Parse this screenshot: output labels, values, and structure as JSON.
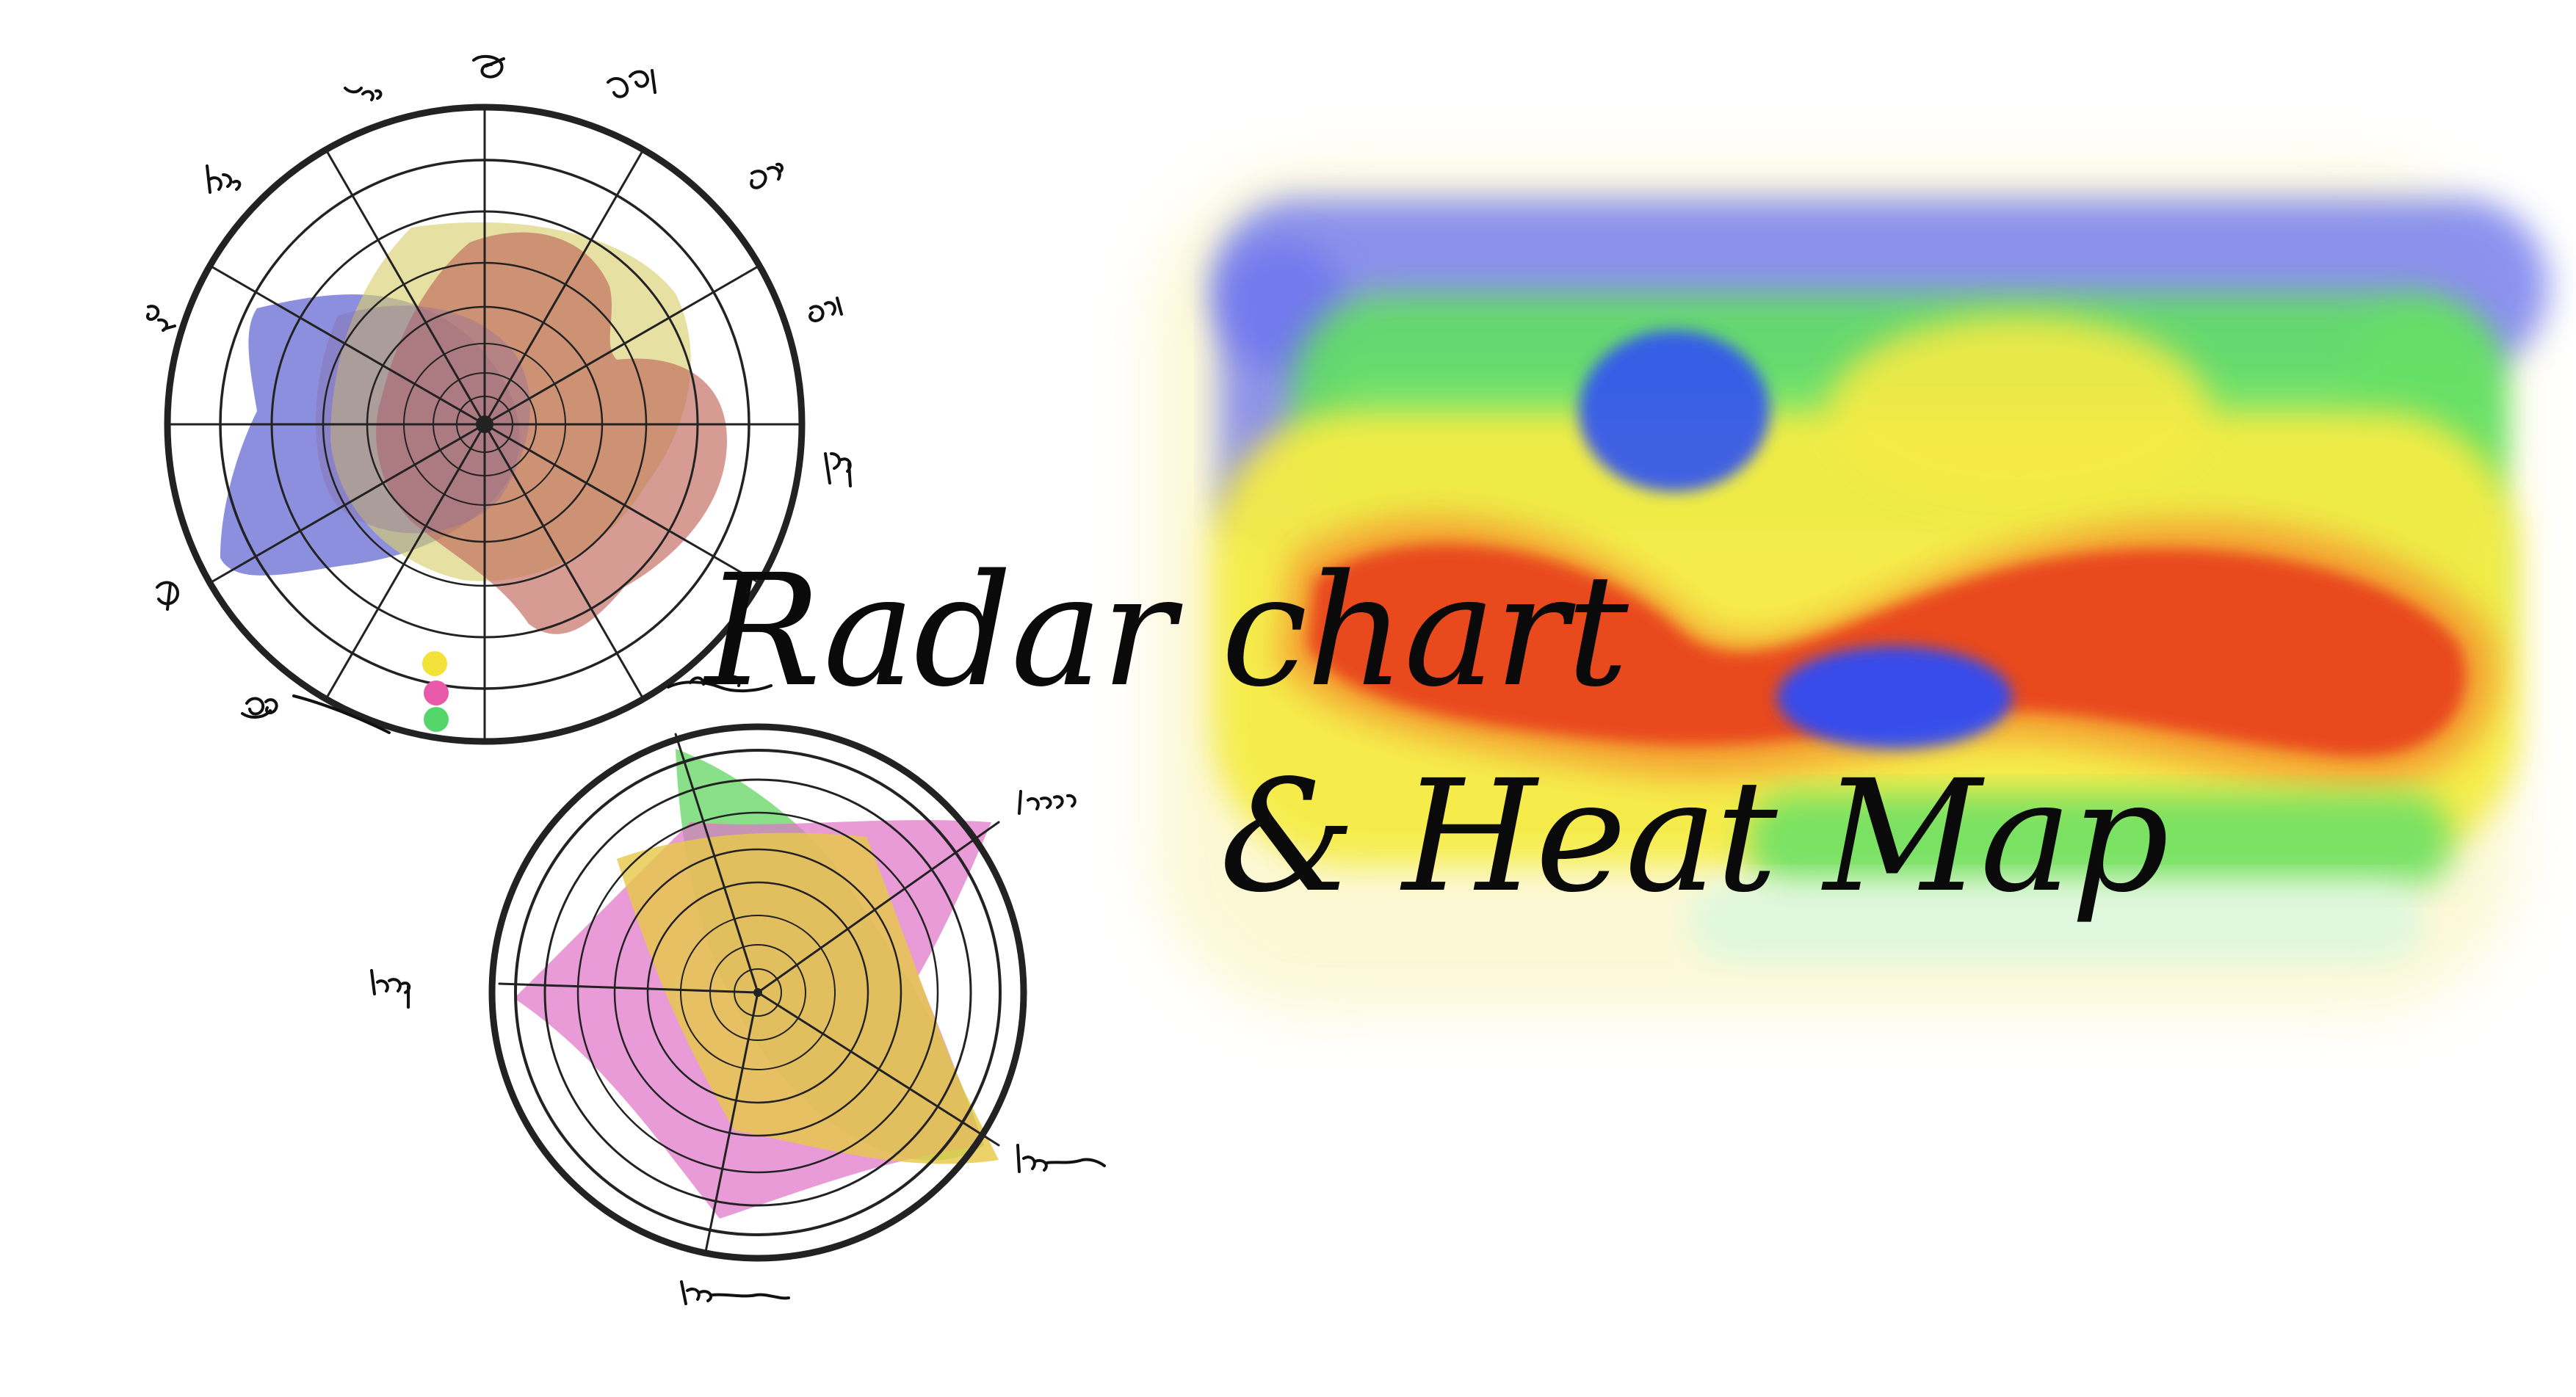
{
  "title": {
    "line1": "Radar chart",
    "line2": "& Heat Map"
  },
  "colors": {
    "background": "#ffffff",
    "ink": "#111111",
    "radar1_series": [
      "#5a5fd0",
      "#d8d070",
      "#c8705a"
    ],
    "radar1_legend_dots": [
      "#f2e23a",
      "#e85aa8",
      "#55d66a"
    ],
    "radar2_series": [
      "#6bd86b",
      "#e070c8",
      "#e6c84a"
    ],
    "heatmap_scale": [
      "#3344ff",
      "#3a8cf0",
      "#5fe05f",
      "#f7ee4a",
      "#f7a830",
      "#ee4422"
    ]
  }
}
